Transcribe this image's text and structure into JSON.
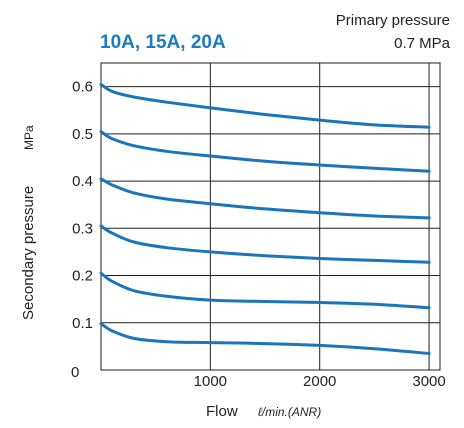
{
  "chart_data": {
    "type": "line",
    "title": "10A, 15A, 20A",
    "annotation": [
      "Primary pressure",
      "0.7 MPa"
    ],
    "xlabel": "Flow",
    "xunit": "ℓ/min.(ANR)",
    "ylabel": "Secondary pressure",
    "yunit": "MPa",
    "xlim": [
      0,
      3100
    ],
    "ylim": [
      0,
      0.65
    ],
    "xticks": [
      1000,
      2000,
      3000
    ],
    "yticks": [
      0.1,
      0.2,
      0.3,
      0.4,
      0.5,
      0.6
    ],
    "origin_label": "0",
    "grid": true,
    "line_color": "#1b75bc",
    "series": [
      {
        "x": [
          0,
          100,
          300,
          600,
          1000,
          1500,
          2000,
          2500,
          3000
        ],
        "y": [
          0.605,
          0.59,
          0.578,
          0.567,
          0.555,
          0.541,
          0.529,
          0.519,
          0.514
        ]
      },
      {
        "x": [
          0,
          100,
          300,
          600,
          1000,
          1500,
          2000,
          2500,
          3000
        ],
        "y": [
          0.505,
          0.49,
          0.475,
          0.463,
          0.453,
          0.442,
          0.434,
          0.427,
          0.421
        ]
      },
      {
        "x": [
          0,
          100,
          300,
          600,
          1000,
          1500,
          2000,
          2500,
          3000
        ],
        "y": [
          0.405,
          0.392,
          0.375,
          0.362,
          0.352,
          0.341,
          0.333,
          0.326,
          0.322
        ]
      },
      {
        "x": [
          0,
          100,
          300,
          600,
          1000,
          1500,
          2000,
          2500,
          3000
        ],
        "y": [
          0.305,
          0.29,
          0.271,
          0.259,
          0.25,
          0.242,
          0.236,
          0.232,
          0.228
        ]
      },
      {
        "x": [
          0,
          100,
          300,
          600,
          1000,
          1500,
          2000,
          2500,
          3000
        ],
        "y": [
          0.205,
          0.188,
          0.168,
          0.156,
          0.148,
          0.145,
          0.143,
          0.139,
          0.132
        ]
      },
      {
        "x": [
          0,
          100,
          300,
          600,
          1000,
          1500,
          2000,
          2500,
          3000
        ],
        "y": [
          0.098,
          0.083,
          0.067,
          0.06,
          0.058,
          0.056,
          0.052,
          0.045,
          0.035
        ]
      }
    ]
  }
}
